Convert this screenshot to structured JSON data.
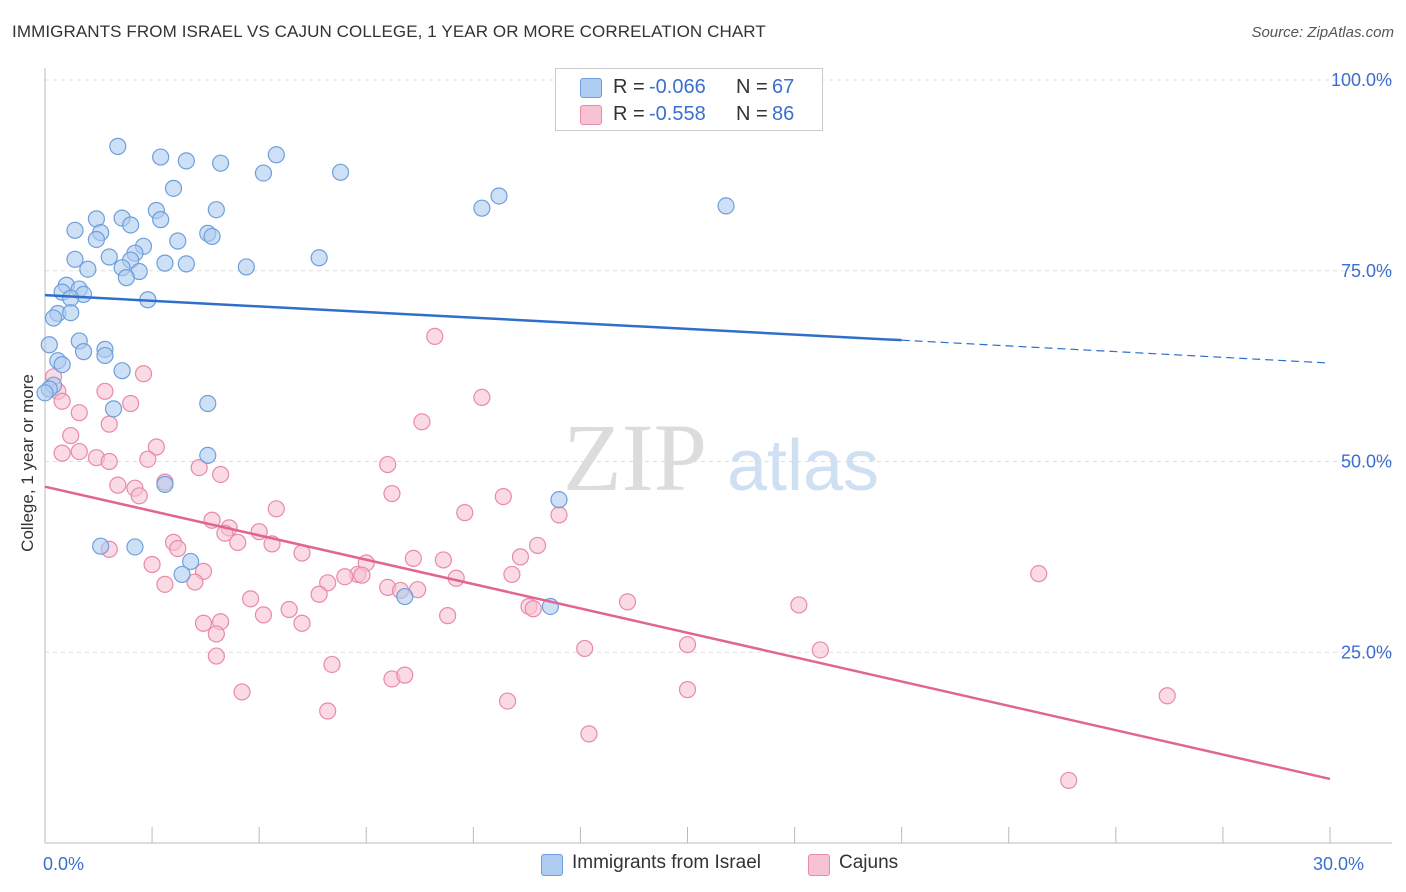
{
  "title": "IMMIGRANTS FROM ISRAEL VS CAJUN COLLEGE, 1 YEAR OR MORE CORRELATION CHART",
  "source": "Source: ZipAtlas.com",
  "watermark": {
    "zip": "ZIP",
    "atlas": "atlas"
  },
  "colors": {
    "blue_fill": "#aecbf0",
    "blue_stroke": "#6e9fdc",
    "blue_line": "#2f6fcc",
    "pink_fill": "#f7c2d2",
    "pink_stroke": "#e98aa8",
    "pink_line": "#e0658f",
    "tick_text": "#3a6fd0",
    "grid": "#dddddd"
  },
  "legend_top": [
    {
      "r_label": "R =",
      "r_value": "-0.066",
      "n_label": "N =",
      "n_value": "67"
    },
    {
      "r_label": "R =",
      "r_value": "-0.558",
      "n_label": "N =",
      "n_value": "86"
    }
  ],
  "legend_bottom": [
    "Immigrants from Israel",
    "Cajuns"
  ],
  "chart_data": {
    "type": "scatter",
    "xlabel": "",
    "ylabel": "College, 1 year or more",
    "xlim": [
      0,
      30
    ],
    "ylim": [
      0,
      100
    ],
    "x_tick_labels": [
      {
        "value": 0,
        "label": "0.0%"
      },
      {
        "value": 30,
        "label": "30.0%"
      }
    ],
    "y_tick_labels": [
      {
        "value": 25,
        "label": "25.0%"
      },
      {
        "value": 50,
        "label": "50.0%"
      },
      {
        "value": 75,
        "label": "75.0%"
      },
      {
        "value": 100,
        "label": "100.0%"
      }
    ],
    "grid": "horizontal dashed",
    "legend_position": "top-center and bottom",
    "series": [
      {
        "name": "Immigrants from Israel",
        "color": "#aecbf0",
        "trend": {
          "x": [
            0,
            20,
            30
          ],
          "y": [
            71.8,
            65.9,
            62.9
          ],
          "solid_until": 20
        },
        "points": [
          [
            1.7,
            91.3
          ],
          [
            2.7,
            89.9
          ],
          [
            3.3,
            89.4
          ],
          [
            4.1,
            89.1
          ],
          [
            5.4,
            90.2
          ],
          [
            5.1,
            87.8
          ],
          [
            6.9,
            87.9
          ],
          [
            3.0,
            85.8
          ],
          [
            10.6,
            84.8
          ],
          [
            10.2,
            83.2
          ],
          [
            15.9,
            83.5
          ],
          [
            4.0,
            83.0
          ],
          [
            2.6,
            82.9
          ],
          [
            2.7,
            81.7
          ],
          [
            1.2,
            81.8
          ],
          [
            1.8,
            81.9
          ],
          [
            2.0,
            81.0
          ],
          [
            0.7,
            80.3
          ],
          [
            1.3,
            80.0
          ],
          [
            3.8,
            79.9
          ],
          [
            3.9,
            79.5
          ],
          [
            1.2,
            79.1
          ],
          [
            3.1,
            78.9
          ],
          [
            2.3,
            78.2
          ],
          [
            2.1,
            77.3
          ],
          [
            1.5,
            76.8
          ],
          [
            6.4,
            76.7
          ],
          [
            0.7,
            76.5
          ],
          [
            2.0,
            76.4
          ],
          [
            2.8,
            76.0
          ],
          [
            3.3,
            75.9
          ],
          [
            4.7,
            75.5
          ],
          [
            1.0,
            75.2
          ],
          [
            1.8,
            75.4
          ],
          [
            2.2,
            74.9
          ],
          [
            1.9,
            74.1
          ],
          [
            0.5,
            73.1
          ],
          [
            0.8,
            72.6
          ],
          [
            0.4,
            72.2
          ],
          [
            0.9,
            71.9
          ],
          [
            0.6,
            71.4
          ],
          [
            2.4,
            71.2
          ],
          [
            0.3,
            69.4
          ],
          [
            0.6,
            69.5
          ],
          [
            0.2,
            68.8
          ],
          [
            0.8,
            65.8
          ],
          [
            0.1,
            65.3
          ],
          [
            1.4,
            64.7
          ],
          [
            0.9,
            64.4
          ],
          [
            1.4,
            63.9
          ],
          [
            0.3,
            63.2
          ],
          [
            0.4,
            62.7
          ],
          [
            1.8,
            61.9
          ],
          [
            0.2,
            60.0
          ],
          [
            0.1,
            59.5
          ],
          [
            3.8,
            57.6
          ],
          [
            1.6,
            56.9
          ],
          [
            3.8,
            50.8
          ],
          [
            2.8,
            47.0
          ],
          [
            12.0,
            45.0
          ],
          [
            1.3,
            38.9
          ],
          [
            2.1,
            38.8
          ],
          [
            3.4,
            36.9
          ],
          [
            3.2,
            35.2
          ],
          [
            8.4,
            32.3
          ],
          [
            11.8,
            31.0
          ],
          [
            0.0,
            59.0
          ]
        ]
      },
      {
        "name": "Cajuns",
        "color": "#f7c2d2",
        "trend": {
          "x": [
            0,
            30
          ],
          "y": [
            46.7,
            8.4
          ]
        },
        "points": [
          [
            9.1,
            66.4
          ],
          [
            0.2,
            61.1
          ],
          [
            2.3,
            61.5
          ],
          [
            0.3,
            59.2
          ],
          [
            1.4,
            59.2
          ],
          [
            10.2,
            58.4
          ],
          [
            0.4,
            57.9
          ],
          [
            2.0,
            57.6
          ],
          [
            0.8,
            56.4
          ],
          [
            1.5,
            54.9
          ],
          [
            8.8,
            55.2
          ],
          [
            0.6,
            53.4
          ],
          [
            2.6,
            51.9
          ],
          [
            0.4,
            51.1
          ],
          [
            0.8,
            51.3
          ],
          [
            1.2,
            50.5
          ],
          [
            1.5,
            50.0
          ],
          [
            2.4,
            50.3
          ],
          [
            8.0,
            49.6
          ],
          [
            3.6,
            49.2
          ],
          [
            4.1,
            48.3
          ],
          [
            1.7,
            46.9
          ],
          [
            2.8,
            47.3
          ],
          [
            2.1,
            46.5
          ],
          [
            8.1,
            45.8
          ],
          [
            10.7,
            45.4
          ],
          [
            2.2,
            45.5
          ],
          [
            5.4,
            43.8
          ],
          [
            9.8,
            43.3
          ],
          [
            12.0,
            43.0
          ],
          [
            3.9,
            42.3
          ],
          [
            4.5,
            39.4
          ],
          [
            4.3,
            41.3
          ],
          [
            4.2,
            40.6
          ],
          [
            5.0,
            40.8
          ],
          [
            5.3,
            39.2
          ],
          [
            6.0,
            38.0
          ],
          [
            11.5,
            39.0
          ],
          [
            3.0,
            39.4
          ],
          [
            3.1,
            38.6
          ],
          [
            8.6,
            37.3
          ],
          [
            9.3,
            37.1
          ],
          [
            11.1,
            37.5
          ],
          [
            7.5,
            36.7
          ],
          [
            3.7,
            35.6
          ],
          [
            7.3,
            35.2
          ],
          [
            1.5,
            38.5
          ],
          [
            2.5,
            36.5
          ],
          [
            23.2,
            35.3
          ],
          [
            7.0,
            34.9
          ],
          [
            7.4,
            35.1
          ],
          [
            10.9,
            35.2
          ],
          [
            9.6,
            34.7
          ],
          [
            3.5,
            34.2
          ],
          [
            2.8,
            33.9
          ],
          [
            6.6,
            34.1
          ],
          [
            8.0,
            33.5
          ],
          [
            8.3,
            33.1
          ],
          [
            8.7,
            33.2
          ],
          [
            6.4,
            32.6
          ],
          [
            4.8,
            32.0
          ],
          [
            13.6,
            31.6
          ],
          [
            11.3,
            31.0
          ],
          [
            11.4,
            30.7
          ],
          [
            17.6,
            31.2
          ],
          [
            5.7,
            30.6
          ],
          [
            5.1,
            29.9
          ],
          [
            9.4,
            29.8
          ],
          [
            4.1,
            29.0
          ],
          [
            3.7,
            28.8
          ],
          [
            6.0,
            28.8
          ],
          [
            4.0,
            27.4
          ],
          [
            15.0,
            26.0
          ],
          [
            12.6,
            25.5
          ],
          [
            18.1,
            25.3
          ],
          [
            4.0,
            24.5
          ],
          [
            6.7,
            23.4
          ],
          [
            8.1,
            21.5
          ],
          [
            8.4,
            22.0
          ],
          [
            15.0,
            20.1
          ],
          [
            4.6,
            19.8
          ],
          [
            26.2,
            19.3
          ],
          [
            10.8,
            18.6
          ],
          [
            6.6,
            17.3
          ],
          [
            12.7,
            14.3
          ],
          [
            23.9,
            8.2
          ]
        ]
      }
    ]
  }
}
